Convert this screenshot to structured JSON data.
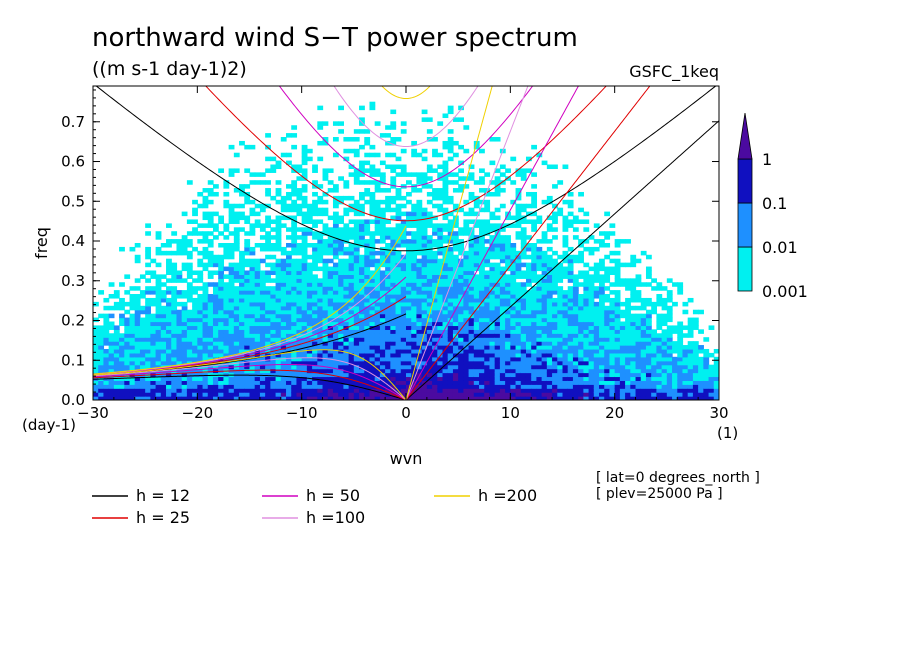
{
  "chart_data": {
    "type": "heatmap",
    "title": "northward wind S−T power spectrum",
    "units": "((m s-1 day-1)2)",
    "source_label": "GSFC_1keq",
    "xlabel": "wvn",
    "ylabel": "freq",
    "x_unit_label": "(1)",
    "y_unit_label": "(day-1)",
    "xlim": [
      -30,
      30
    ],
    "ylim": [
      0,
      0.79
    ],
    "xticks": [
      -30,
      -20,
      -10,
      0,
      10,
      20,
      30
    ],
    "yticks": [
      0.0,
      0.1,
      0.2,
      0.3,
      0.4,
      0.5,
      0.6,
      0.7
    ],
    "ytick_labels": [
      "0.0",
      "0.1",
      "0.2",
      "0.3",
      "0.4",
      "0.5",
      "0.6",
      "0.7"
    ],
    "colorbar": {
      "levels": [
        0.001,
        0.01,
        0.1,
        1
      ],
      "labels": [
        "0.001",
        "0.01",
        "0.1",
        "1"
      ],
      "colors": [
        "#00f0f0",
        "#1e90ff",
        "#1010c0",
        "#4b0aa0"
      ]
    },
    "dispersion_curves": [
      {
        "label": "h = 12",
        "h": 12,
        "color": "#000000"
      },
      {
        "label": "h = 25",
        "h": 25,
        "color": "#e00000"
      },
      {
        "label": "h = 50",
        "h": 50,
        "color": "#d000c0"
      },
      {
        "label": "h =100",
        "h": 100,
        "color": "#e090e0"
      },
      {
        "label": "h =200",
        "h": 200,
        "color": "#f0d000"
      }
    ],
    "annotations": [
      "[ lat=0 degrees_north ]",
      "[ plev=25000 Pa ]"
    ]
  }
}
